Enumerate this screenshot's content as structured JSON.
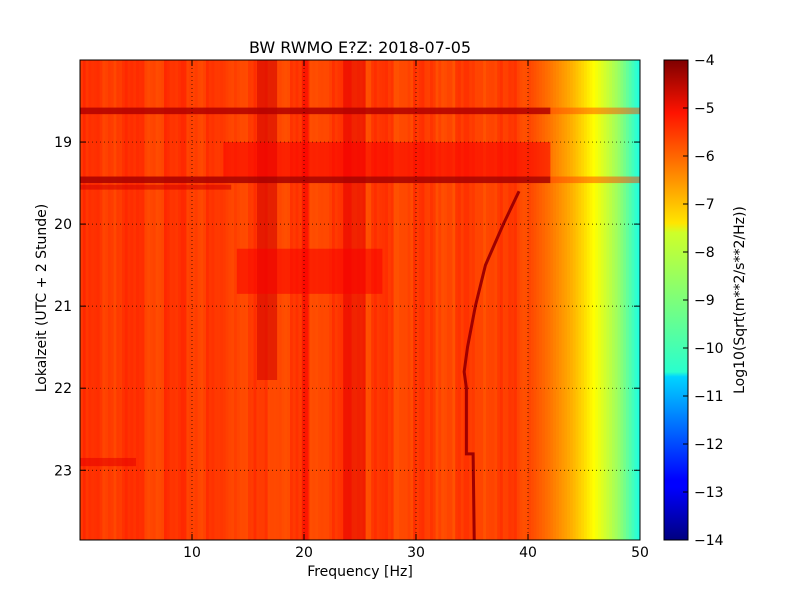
{
  "chart_data": {
    "type": "heatmap",
    "title": "BW RWMO E?Z: 2018-07-05",
    "xlabel": "Frequency [Hz]",
    "ylabel": "Lokalzeit (UTC + 2 Stunde)",
    "xlim": [
      0,
      50
    ],
    "ylim": [
      18.0,
      23.85
    ],
    "y_inverted": true,
    "xticks": [
      10,
      20,
      30,
      40,
      50
    ],
    "yticks": [
      19,
      20,
      21,
      22,
      23
    ],
    "grid": true,
    "colorbar": {
      "label": "Log10(Sqrt(m**2/s**2/Hz))",
      "range": [
        -14,
        -4
      ],
      "ticks": [
        -4,
        -5,
        -6,
        -7,
        -8,
        -9,
        -10,
        -11,
        -12,
        -13,
        -14
      ],
      "colormap": "jet"
    },
    "background_level": -5.8,
    "frequency_rolloff": [
      {
        "freq": 0,
        "value": -5.8
      },
      {
        "freq": 40,
        "value": -5.9
      },
      {
        "freq": 42,
        "value": -6.4
      },
      {
        "freq": 44,
        "value": -7.0
      },
      {
        "freq": 46,
        "value": -7.8
      },
      {
        "freq": 48,
        "value": -8.7
      },
      {
        "freq": 50,
        "value": -10.0
      }
    ],
    "features": [
      {
        "name": "vertical line",
        "freq_start": 15.8,
        "freq_end": 17.6,
        "time_start": 18.0,
        "time_end": 21.9,
        "value": -4.8
      },
      {
        "name": "vertical line",
        "freq_start": 19.8,
        "freq_end": 20.4,
        "time_start": 18.0,
        "time_end": 23.85,
        "value": -5.2
      },
      {
        "name": "vertical line",
        "freq_start": 23.5,
        "freq_end": 25.5,
        "time_start": 18.0,
        "time_end": 23.85,
        "value": -5.0
      },
      {
        "name": "horizontal band",
        "freq_start": 0,
        "freq_end": 50,
        "time_start": 18.58,
        "time_end": 18.66,
        "value": -4.5
      },
      {
        "name": "horizontal band",
        "freq_start": 0,
        "freq_end": 50,
        "time_start": 19.42,
        "time_end": 19.5,
        "value": -4.4
      },
      {
        "name": "horizontal band",
        "freq_start": 0,
        "freq_end": 13.5,
        "time_start": 19.52,
        "time_end": 19.58,
        "value": -4.8
      },
      {
        "name": "block",
        "freq_start": 12.8,
        "freq_end": 42,
        "time_start": 19.0,
        "time_end": 19.42,
        "value": -5.2
      },
      {
        "name": "block",
        "freq_start": 14,
        "freq_end": 27,
        "time_start": 20.3,
        "time_end": 20.85,
        "value": -5.2
      },
      {
        "name": "block",
        "freq_start": 0,
        "freq_end": 5,
        "time_start": 22.85,
        "time_end": 22.95,
        "value": -5.0
      }
    ],
    "drift_line": [
      {
        "time": 19.6,
        "freq": 39.2
      },
      {
        "time": 20.0,
        "freq": 37.8
      },
      {
        "time": 20.5,
        "freq": 36.2
      },
      {
        "time": 21.0,
        "freq": 35.3
      },
      {
        "time": 21.5,
        "freq": 34.6
      },
      {
        "time": 21.8,
        "freq": 34.3
      },
      {
        "time": 22.0,
        "freq": 34.5
      },
      {
        "time": 22.8,
        "freq": 34.5
      },
      {
        "time": 22.8,
        "freq": 35.1
      },
      {
        "time": 23.85,
        "freq": 35.2
      }
    ]
  }
}
